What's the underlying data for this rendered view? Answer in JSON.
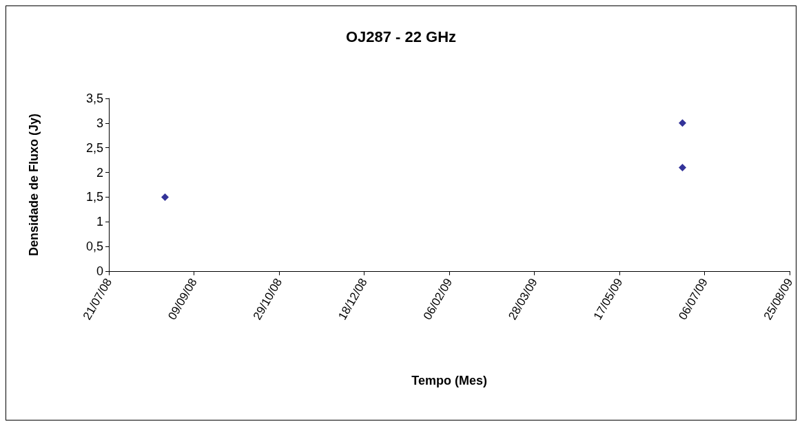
{
  "chart_data": {
    "type": "scatter",
    "title": "OJ287 - 22 GHz",
    "xlabel": "Tempo (Mes)",
    "ylabel": "Densidade de Fluxo (Jy)",
    "x": [
      "2008-08-23",
      "2009-06-23",
      "2009-06-23"
    ],
    "series": [
      {
        "color": "#000080",
        "values": [
          1.5,
          2.1,
          3.0
        ]
      }
    ],
    "xlim": [
      "2008-07-21",
      "2009-08-25"
    ],
    "xticks": [
      {
        "value": "2008-07-21",
        "label": "21/07/08"
      },
      {
        "value": "2008-09-09",
        "label": "09/09/08"
      },
      {
        "value": "2008-10-29",
        "label": "29/10/08"
      },
      {
        "value": "2008-12-18",
        "label": "18/12/08"
      },
      {
        "value": "2009-02-06",
        "label": "06/02/09"
      },
      {
        "value": "2009-03-28",
        "label": "28/03/09"
      },
      {
        "value": "2009-05-17",
        "label": "17/05/09"
      },
      {
        "value": "2009-07-06",
        "label": "06/07/09"
      },
      {
        "value": "2009-08-25",
        "label": "25/08/09"
      }
    ],
    "ylim": [
      0,
      3.5
    ],
    "yticks": [
      {
        "value": 0,
        "label": "0"
      },
      {
        "value": 0.5,
        "label": "0,5"
      },
      {
        "value": 1,
        "label": "1"
      },
      {
        "value": 1.5,
        "label": "1,5"
      },
      {
        "value": 2,
        "label": "2"
      },
      {
        "value": 2.5,
        "label": "2,5"
      },
      {
        "value": 3,
        "label": "3"
      },
      {
        "value": 3.5,
        "label": "3,5"
      }
    ],
    "grid": false,
    "marker": "diamond"
  }
}
